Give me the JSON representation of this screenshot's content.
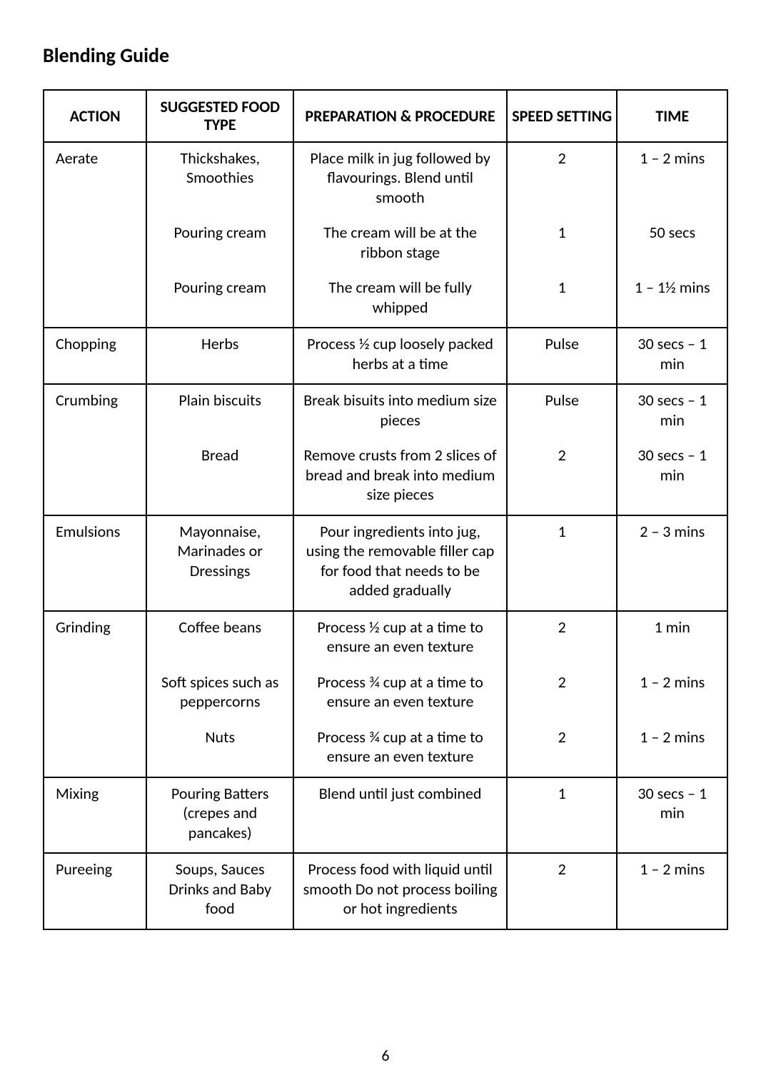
{
  "title": "Blending Guide",
  "page_number": "6",
  "table": {
    "headers": {
      "action": "Action",
      "food": "Suggested Food Type",
      "prep": "Preparation & Procedure",
      "speed": "Speed Setting",
      "time": "Time"
    },
    "sections": [
      {
        "action": "Aerate",
        "rows": [
          {
            "food": "Thickshakes, Smoothies",
            "prep": "Place milk in jug followed by flavourings. Blend until smooth",
            "speed": "2",
            "time": "1 – 2 mins"
          },
          {
            "food": "Pouring cream",
            "prep": "The cream will be at the ribbon stage",
            "speed": "1",
            "time": "50 secs"
          },
          {
            "food": "Pouring cream",
            "prep": "The cream will be fully whipped",
            "speed": "1",
            "time": "1 – 1½ mins"
          }
        ]
      },
      {
        "action": "Chopping",
        "rows": [
          {
            "food": "Herbs",
            "prep": "Process ½ cup loosely packed herbs at a time",
            "speed": "Pulse",
            "time": "30 secs – 1 min"
          }
        ]
      },
      {
        "action": "Crumbing",
        "rows": [
          {
            "food": "Plain biscuits",
            "prep": "Break bisuits into medium size pieces",
            "speed": "Pulse",
            "time": "30 secs – 1 min"
          },
          {
            "food": "Bread",
            "prep": "Remove crusts from 2 slices of bread and break into medium size pieces",
            "speed": "2",
            "time": "30 secs – 1 min"
          }
        ]
      },
      {
        "action": "Emulsions",
        "rows": [
          {
            "food": "Mayonnaise, Marinades or Dressings",
            "prep": "Pour ingredients into jug, using the removable filler cap for food that needs to be added gradually",
            "speed": "1",
            "time": "2 – 3 mins"
          }
        ]
      },
      {
        "action": "Grinding",
        "rows": [
          {
            "food": "Coffee beans",
            "prep": "Process ½ cup at a time to ensure an even texture",
            "speed": "2",
            "time": "1 min"
          },
          {
            "food": "Soft spices such as peppercorns",
            "prep": "Process ¾ cup at a time to ensure an even texture",
            "speed": "2",
            "time": "1 – 2 mins"
          },
          {
            "food": "Nuts",
            "prep": "Process ¾ cup at a time to ensure an even texture",
            "speed": "2",
            "time": "1 – 2 mins"
          }
        ]
      },
      {
        "action": "Mixing",
        "rows": [
          {
            "food": "Pouring Batters (crepes and pancakes)",
            "prep": "Blend until just combined",
            "speed": "1",
            "time": "30 secs – 1 min"
          }
        ]
      },
      {
        "action": "Pureeing",
        "rows": [
          {
            "food": "Soups, Sauces Drinks and Baby food",
            "prep": "Process food with liquid until smooth Do not process boiling or hot ingredients",
            "speed": "2",
            "time": "1 – 2 mins"
          }
        ]
      }
    ]
  }
}
